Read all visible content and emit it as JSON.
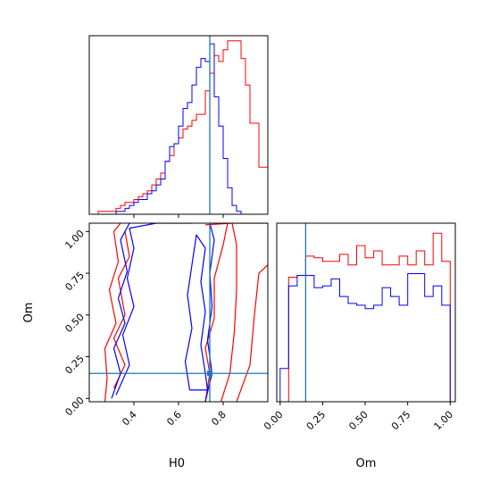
{
  "colors": {
    "red": "#ff0000",
    "blue": "#0000ff",
    "truth": "#1f77b4",
    "axis": "#000000"
  },
  "chart_data": {
    "type": "corner",
    "parameters": [
      "H0",
      "Om"
    ],
    "truth": {
      "H0": 0.74,
      "Om": 0.15
    },
    "hist_H0": {
      "type": "histogram",
      "xlim": [
        0.2,
        1.0
      ],
      "bin_edges": [
        0.2,
        0.22,
        0.24,
        0.26,
        0.28,
        0.3,
        0.32,
        0.34,
        0.36,
        0.38,
        0.4,
        0.42,
        0.44,
        0.46,
        0.48,
        0.5,
        0.52,
        0.54,
        0.56,
        0.58,
        0.6,
        0.62,
        0.64,
        0.66,
        0.68,
        0.7,
        0.72,
        0.74,
        0.76,
        0.78,
        0.8,
        0.82,
        0.84,
        0.86,
        0.88,
        0.9,
        0.92,
        0.94,
        0.96,
        0.98,
        1.0
      ],
      "series": [
        {
          "name": "red",
          "counts": [
            0,
            0,
            1,
            1,
            1,
            1,
            2,
            3,
            4,
            4,
            5,
            6,
            7,
            8,
            10,
            12,
            14,
            18,
            20,
            24,
            26,
            29,
            30,
            32,
            34,
            34,
            42,
            48,
            54,
            52,
            56,
            59,
            59,
            59,
            53,
            44,
            31,
            31,
            16,
            16
          ]
        },
        {
          "name": "blue",
          "counts": [
            0,
            0,
            0,
            0,
            0,
            0,
            1,
            1,
            2,
            3,
            4,
            5,
            5,
            7,
            8,
            10,
            12,
            18,
            23,
            24,
            30,
            36,
            38,
            44,
            50,
            53,
            52,
            58,
            40,
            30,
            19,
            9,
            3,
            1,
            0,
            0,
            0,
            0,
            0,
            0
          ]
        }
      ]
    },
    "hist_Om": {
      "type": "histogram",
      "xlim": [
        -0.02,
        1.03
      ],
      "xticks": [
        "0.00",
        "0.25",
        "0.50",
        "0.75",
        "1.00"
      ],
      "bin_edges": [
        0.0,
        0.05,
        0.1,
        0.15,
        0.2,
        0.25,
        0.3,
        0.35,
        0.4,
        0.45,
        0.5,
        0.55,
        0.6,
        0.65,
        0.7,
        0.75,
        0.8,
        0.85,
        0.9,
        0.95,
        1.0
      ],
      "series": [
        {
          "name": "red",
          "counts": [
            0.0,
            0.71,
            0.72,
            0.83,
            0.82,
            0.8,
            0.8,
            0.84,
            0.78,
            0.89,
            0.82,
            0.86,
            0.78,
            0.78,
            0.83,
            0.78,
            0.86,
            0.78,
            0.96,
            0.8
          ]
        },
        {
          "name": "blue",
          "counts": [
            0.19,
            0.66,
            0.72,
            0.72,
            0.65,
            0.66,
            0.7,
            0.6,
            0.56,
            0.55,
            0.53,
            0.55,
            0.65,
            0.6,
            0.55,
            0.73,
            0.73,
            0.6,
            0.66,
            0.55
          ]
        }
      ]
    },
    "contour_2d": {
      "type": "contour",
      "xlim": [
        0.2,
        1.0
      ],
      "ylim": [
        -0.02,
        1.05
      ],
      "xlabel": "H0",
      "ylabel": "Om",
      "xticks": [
        "0.4",
        "0.6",
        "0.8"
      ],
      "yticks": [
        "0.00",
        "0.25",
        "0.50",
        "0.75",
        "1.00"
      ],
      "contours": [
        {
          "series": "red",
          "points": [
            [
              0.27,
              -0.02
            ],
            [
              0.28,
              0.12
            ],
            [
              0.27,
              0.3
            ],
            [
              0.32,
              0.45
            ],
            [
              0.29,
              0.65
            ],
            [
              0.33,
              0.82
            ],
            [
              0.31,
              1.0
            ],
            [
              0.34,
              1.05
            ]
          ]
        },
        {
          "series": "red",
          "points": [
            [
              0.31,
              0.06
            ],
            [
              0.36,
              0.2
            ],
            [
              0.31,
              0.36
            ],
            [
              0.36,
              0.5
            ],
            [
              0.33,
              0.72
            ],
            [
              0.38,
              0.85
            ],
            [
              0.36,
              1.0
            ]
          ]
        },
        {
          "series": "red",
          "points": [
            [
              0.72,
              -0.02
            ],
            [
              0.74,
              0.15
            ],
            [
              0.72,
              0.3
            ],
            [
              0.76,
              0.48
            ],
            [
              0.76,
              0.72
            ],
            [
              0.8,
              0.92
            ],
            [
              0.82,
              1.05
            ]
          ]
        },
        {
          "series": "red",
          "points": [
            [
              0.79,
              -0.02
            ],
            [
              0.83,
              0.15
            ],
            [
              0.85,
              0.4
            ],
            [
              0.86,
              0.65
            ],
            [
              0.86,
              0.92
            ],
            [
              0.84,
              1.05
            ]
          ]
        },
        {
          "series": "red",
          "points": [
            [
              0.86,
              -0.02
            ],
            [
              0.92,
              0.2
            ],
            [
              0.94,
              0.5
            ],
            [
              0.96,
              0.75
            ],
            [
              1.0,
              0.8
            ]
          ]
        },
        {
          "series": "red",
          "points": [
            [
              0.72,
              1.04
            ],
            [
              0.84,
              1.05
            ],
            [
              1.0,
              1.05
            ]
          ]
        },
        {
          "series": "blue",
          "points": [
            [
              0.3,
              0.0
            ],
            [
              0.34,
              0.15
            ],
            [
              0.31,
              0.3
            ],
            [
              0.36,
              0.45
            ],
            [
              0.33,
              0.6
            ],
            [
              0.37,
              0.76
            ],
            [
              0.34,
              0.95
            ],
            [
              0.38,
              1.05
            ]
          ]
        },
        {
          "series": "blue",
          "points": [
            [
              0.32,
              0.02
            ],
            [
              0.38,
              0.2
            ],
            [
              0.35,
              0.38
            ],
            [
              0.4,
              0.55
            ],
            [
              0.37,
              0.72
            ],
            [
              0.4,
              0.9
            ],
            [
              0.38,
              1.02
            ],
            [
              0.5,
              1.05
            ],
            [
              0.66,
              1.05
            ]
          ]
        },
        {
          "series": "blue",
          "points": [
            [
              0.65,
              0.05
            ],
            [
              0.63,
              0.22
            ],
            [
              0.66,
              0.42
            ],
            [
              0.64,
              0.62
            ],
            [
              0.66,
              0.8
            ],
            [
              0.68,
              0.98
            ],
            [
              0.72,
              0.9
            ],
            [
              0.7,
              0.7
            ],
            [
              0.72,
              0.52
            ],
            [
              0.7,
              0.32
            ],
            [
              0.72,
              0.15
            ],
            [
              0.73,
              0.05
            ],
            [
              0.65,
              0.05
            ]
          ]
        },
        {
          "series": "blue",
          "points": [
            [
              0.72,
              -0.02
            ],
            [
              0.75,
              0.15
            ],
            [
              0.73,
              0.35
            ],
            [
              0.75,
              0.55
            ],
            [
              0.74,
              0.75
            ],
            [
              0.76,
              0.95
            ],
            [
              0.74,
              1.05
            ]
          ]
        }
      ]
    }
  }
}
